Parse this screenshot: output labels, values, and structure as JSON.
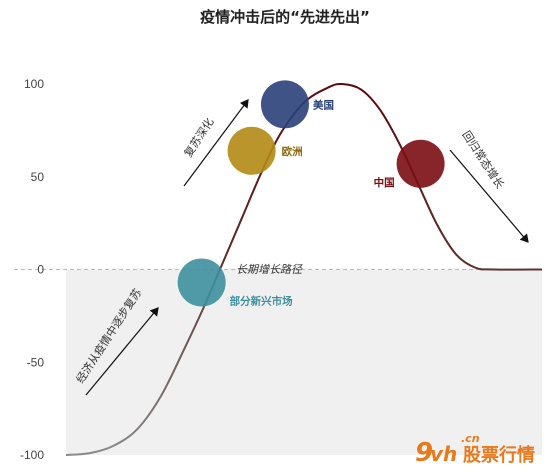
{
  "chart_data": {
    "type": "line",
    "title": "疫情冲击后的“先进先出”",
    "ylim": [
      -100,
      100
    ],
    "yticks": [
      100,
      50,
      0,
      -50,
      -100
    ],
    "baseline_label": "长期增长路径",
    "curve": [
      {
        "x": 0.0,
        "y": -100
      },
      {
        "x": 0.05,
        "y": -99
      },
      {
        "x": 0.1,
        "y": -95
      },
      {
        "x": 0.15,
        "y": -86
      },
      {
        "x": 0.2,
        "y": -68
      },
      {
        "x": 0.25,
        "y": -42
      },
      {
        "x": 0.29,
        "y": -20
      },
      {
        "x": 0.33,
        "y": 4
      },
      {
        "x": 0.37,
        "y": 28
      },
      {
        "x": 0.41,
        "y": 52
      },
      {
        "x": 0.45,
        "y": 73
      },
      {
        "x": 0.5,
        "y": 90
      },
      {
        "x": 0.55,
        "y": 98
      },
      {
        "x": 0.58,
        "y": 100
      },
      {
        "x": 0.62,
        "y": 97
      },
      {
        "x": 0.66,
        "y": 86
      },
      {
        "x": 0.7,
        "y": 68
      },
      {
        "x": 0.74,
        "y": 46
      },
      {
        "x": 0.78,
        "y": 24
      },
      {
        "x": 0.82,
        "y": 8
      },
      {
        "x": 0.86,
        "y": 1
      },
      {
        "x": 0.9,
        "y": 0
      },
      {
        "x": 1.0,
        "y": 0
      }
    ],
    "series": [
      {
        "name": "部分新兴市场",
        "x": 0.285,
        "y": -7,
        "color": "#3e8f9f"
      },
      {
        "name": "欧洲",
        "x": 0.39,
        "y": 64,
        "color": "#b38a14"
      },
      {
        "name": "美国",
        "x": 0.46,
        "y": 89,
        "color": "#2a4079"
      },
      {
        "name": "中国",
        "x": 0.745,
        "y": 57,
        "color": "#7a0d14"
      }
    ],
    "annotations": [
      "经济从疫情中逐步复苏",
      "复苏深化",
      "回归常态增长"
    ]
  },
  "watermark": {
    "brand_number": "9vh",
    "domain": ".cn",
    "brand_text": "股票行情"
  }
}
